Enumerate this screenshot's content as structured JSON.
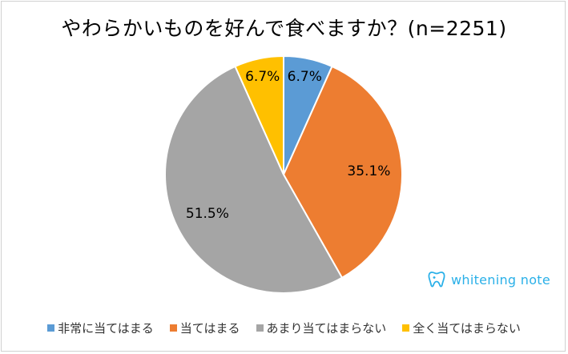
{
  "title": "やわらかいものを好んで食べますか？(n=2251)",
  "logo_text": "whitening note",
  "chart_data": {
    "type": "pie",
    "title": "やわらかいものを好んで食べますか？(n=2251)",
    "slices": [
      {
        "label": "非常に当てはまる",
        "value": 6.7,
        "display": "6.7%",
        "color": "#5b9bd5"
      },
      {
        "label": "当てはまる",
        "value": 35.1,
        "display": "35.1%",
        "color": "#ed7d31"
      },
      {
        "label": "あまり当てはまらない",
        "value": 51.5,
        "display": "51.5%",
        "color": "#a5a5a5"
      },
      {
        "label": "全く当てはまらない",
        "value": 6.7,
        "display": "6.7%",
        "color": "#ffc000"
      }
    ],
    "legend_position": "bottom"
  }
}
